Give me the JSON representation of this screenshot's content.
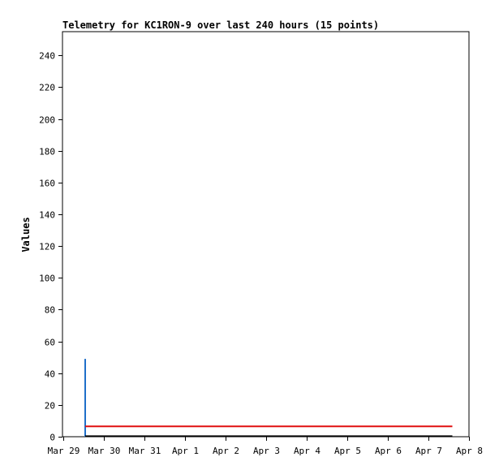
{
  "chart_data": {
    "type": "line",
    "title": "Telemetry for KC1RON-9 over last 240 hours (15 points)",
    "xlabel": "",
    "ylabel": "Values",
    "x_ticks": [
      "Mar 29",
      "Mar 30",
      "Mar 31",
      "Apr 1",
      "Apr 2",
      "Apr 3",
      "Apr 4",
      "Apr 5",
      "Apr 6",
      "Apr 7",
      "Apr 8"
    ],
    "y_ticks": [
      0,
      20,
      40,
      60,
      80,
      100,
      120,
      140,
      160,
      180,
      200,
      220,
      240
    ],
    "xlim": [
      0,
      10
    ],
    "ylim": [
      0,
      255
    ],
    "grid": false,
    "series": [
      {
        "color": "#1f6fc9",
        "points": [
          [
            0.55,
            49
          ],
          [
            0.55,
            0
          ]
        ]
      },
      {
        "color": "#e01010",
        "points": [
          [
            0.55,
            6.5
          ],
          [
            9.6,
            6.5
          ]
        ]
      },
      {
        "color": "#000000",
        "points": [
          [
            0.55,
            0.3
          ],
          [
            9.6,
            0.3
          ]
        ]
      }
    ]
  }
}
